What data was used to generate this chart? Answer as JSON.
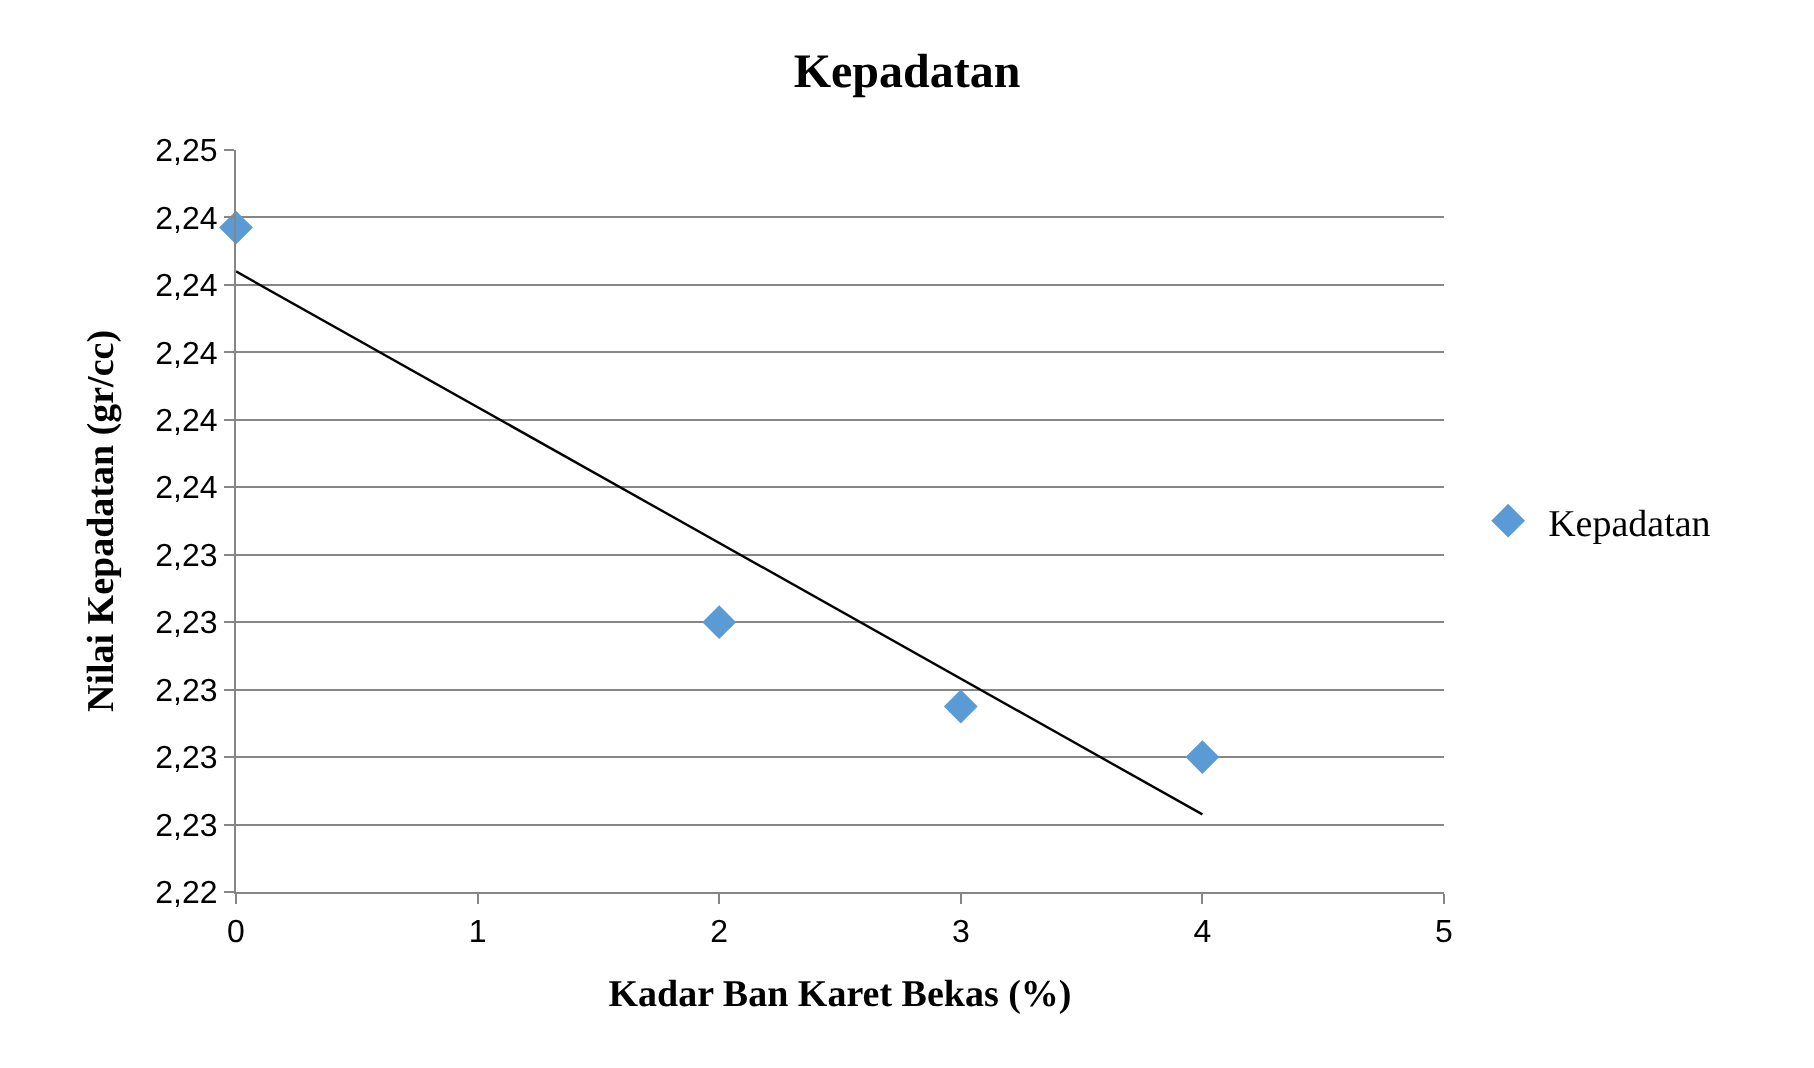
{
  "chart_data": {
    "type": "scatter",
    "title": "Kepadatan",
    "xlabel": "Kadar Ban Karet Bekas (%)",
    "ylabel": "Nilai Kepadatan (gr/cc)",
    "series": [
      {
        "name": "Kepadatan",
        "color": "#5b9bd5",
        "marker": "diamond",
        "x": [
          0,
          2,
          3,
          4
        ],
        "values": [
          2.2437,
          2.232,
          2.2295,
          2.228
        ]
      },
      {
        "type": "line",
        "color": "#000000",
        "marker": "none",
        "x": [
          0,
          4
        ],
        "values": [
          2.2424,
          2.2263
        ]
      }
    ],
    "xlim": [
      0,
      5
    ],
    "xticks": [
      0,
      1,
      2,
      3,
      4,
      5
    ],
    "ylim": [
      2.224,
      2.246
    ],
    "yticks": [
      {
        "value": 2.224,
        "label": "2,22"
      },
      {
        "value": 2.226,
        "label": "2,23"
      },
      {
        "value": 2.228,
        "label": "2,23"
      },
      {
        "value": 2.23,
        "label": "2,23"
      },
      {
        "value": 2.232,
        "label": "2,23"
      },
      {
        "value": 2.234,
        "label": "2,23"
      },
      {
        "value": 2.236,
        "label": "2,24"
      },
      {
        "value": 2.238,
        "label": "2,24"
      },
      {
        "value": 2.24,
        "label": "2,24"
      },
      {
        "value": 2.242,
        "label": "2,24"
      },
      {
        "value": 2.244,
        "label": "2,24"
      },
      {
        "value": 2.246,
        "label": "2,25"
      }
    ],
    "grid": "y",
    "legend": "right"
  }
}
